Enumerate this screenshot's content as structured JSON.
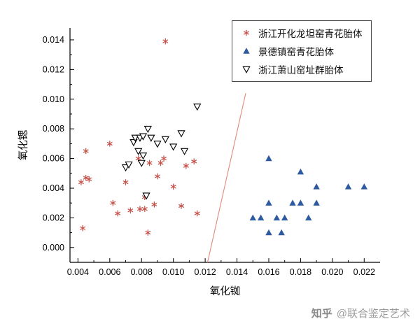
{
  "watermark": {
    "brand": "知乎",
    "handle": "@联合鉴定艺术"
  },
  "chart_data": {
    "type": "scatter",
    "title": "",
    "xlabel": "氧化铷",
    "ylabel": "氧化锶",
    "xlim": [
      0.0035,
      0.023
    ],
    "ylim": [
      -0.001,
      0.0148
    ],
    "x_ticks": [
      0.004,
      0.006,
      0.008,
      0.01,
      0.012,
      0.014,
      0.016,
      0.018,
      0.02,
      0.022
    ],
    "y_ticks": [
      0.0,
      0.002,
      0.004,
      0.006,
      0.008,
      0.01,
      0.012,
      0.014
    ],
    "grid": false,
    "legend_position": "top-right",
    "series": [
      {
        "name": "浙江开化龙坦窑青花胎体",
        "marker": "asterisk",
        "color": "#c5524a",
        "points": [
          [
            0.0042,
            0.0044
          ],
          [
            0.0045,
            0.0047
          ],
          [
            0.0047,
            0.0046
          ],
          [
            0.0043,
            0.0013
          ],
          [
            0.0045,
            0.0065
          ],
          [
            0.006,
            0.007
          ],
          [
            0.0062,
            0.003
          ],
          [
            0.0065,
            0.0023
          ],
          [
            0.007,
            0.0044
          ],
          [
            0.0073,
            0.0025
          ],
          [
            0.0078,
            0.006
          ],
          [
            0.0079,
            0.0026
          ],
          [
            0.0082,
            0.0026
          ],
          [
            0.0082,
            0.0034
          ],
          [
            0.0084,
            0.001
          ],
          [
            0.0085,
            0.0057
          ],
          [
            0.0088,
            0.0029
          ],
          [
            0.009,
            0.0048
          ],
          [
            0.0092,
            0.0057
          ],
          [
            0.0094,
            0.006
          ],
          [
            0.0095,
            0.0139
          ],
          [
            0.01,
            0.0041
          ],
          [
            0.0105,
            0.0028
          ],
          [
            0.0108,
            0.0055
          ],
          [
            0.0113,
            0.0058
          ],
          [
            0.0115,
            0.0023
          ]
        ]
      },
      {
        "name": "景德镇窑青花胎体",
        "marker": "triangle-up-filled",
        "color": "#2e5b9f",
        "points": [
          [
            0.015,
            0.002
          ],
          [
            0.0155,
            0.002
          ],
          [
            0.016,
            0.006
          ],
          [
            0.016,
            0.003
          ],
          [
            0.016,
            0.001
          ],
          [
            0.0165,
            0.002
          ],
          [
            0.0168,
            0.001
          ],
          [
            0.017,
            0.002
          ],
          [
            0.0175,
            0.003
          ],
          [
            0.018,
            0.0051
          ],
          [
            0.018,
            0.003
          ],
          [
            0.0185,
            0.002
          ],
          [
            0.019,
            0.0041
          ],
          [
            0.019,
            0.003
          ],
          [
            0.021,
            0.0041
          ],
          [
            0.022,
            0.0041
          ]
        ]
      },
      {
        "name": "浙江萧山窑址群胎体",
        "marker": "triangle-down-open",
        "color": "#000000",
        "points": [
          [
            0.007,
            0.0054
          ],
          [
            0.0072,
            0.0056
          ],
          [
            0.0075,
            0.0071
          ],
          [
            0.0076,
            0.0074
          ],
          [
            0.0078,
            0.0065
          ],
          [
            0.0079,
            0.0074
          ],
          [
            0.0081,
            0.0075
          ],
          [
            0.008,
            0.0057
          ],
          [
            0.0081,
            0.0062
          ],
          [
            0.0083,
            0.0035
          ],
          [
            0.0084,
            0.008
          ],
          [
            0.0086,
            0.0074
          ],
          [
            0.009,
            0.007
          ],
          [
            0.0095,
            0.0073
          ],
          [
            0.01,
            0.0068
          ],
          [
            0.0105,
            0.0077
          ],
          [
            0.0107,
            0.0065
          ],
          [
            0.0115,
            0.0095
          ]
        ]
      }
    ],
    "divider_line": {
      "color": "#e08a7e",
      "points": [
        [
          0.01215,
          -0.001
        ],
        [
          0.01455,
          0.0104
        ]
      ]
    }
  }
}
